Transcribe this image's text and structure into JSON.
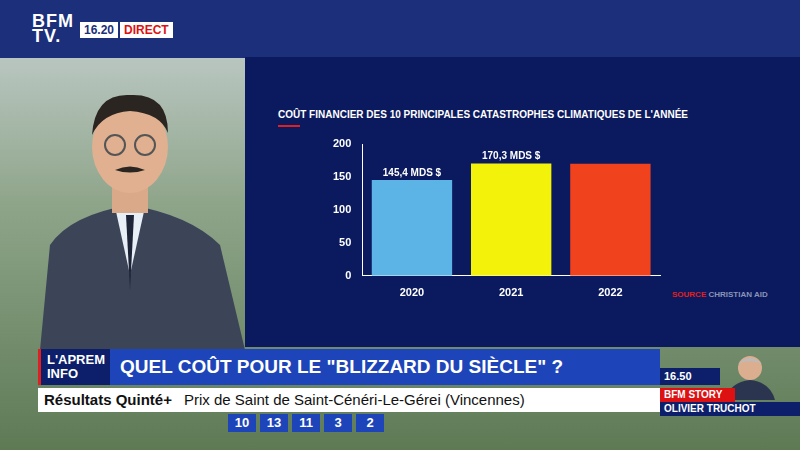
{
  "header": {
    "logo": [
      "BFM",
      "TV."
    ],
    "time": "16.20",
    "live": "DIRECT"
  },
  "chart_data": {
    "type": "bar",
    "title": "COÛT FINANCIER DES 10 PRINCIPALES CATASTROPHES CLIMATIQUES DE L'ANNÉE",
    "categories": [
      "2020",
      "2021",
      "2022"
    ],
    "values": [
      145.4,
      170.3,
      170
    ],
    "value_labels": [
      "145,4 MDS $",
      "170,3 MDS $",
      null
    ],
    "data_labels": true,
    "colors": [
      "#5cb3e6",
      "#f2f20a",
      "#f0421c"
    ],
    "ylim": [
      0,
      200
    ],
    "yticks": [
      0,
      50,
      100,
      150,
      200
    ],
    "grid": false,
    "source_label": "SOURCE",
    "source": "CHRISTIAN AID"
  },
  "banner": {
    "show": "L'APREM INFO",
    "headline": "QUEL COÛT POUR LE \"BLIZZARD DU SIÈCLE\" ?"
  },
  "ticker": {
    "label": "Résultats Quinté+",
    "text": "Prix de Saint de Saint-Cénéri-Le-Gérei (Vincennes)",
    "numbers": [
      10,
      13,
      11,
      3,
      2
    ]
  },
  "next": {
    "time": "16.50",
    "program": "BFM STORY",
    "host": "OLIVIER TRUCHOT"
  }
}
